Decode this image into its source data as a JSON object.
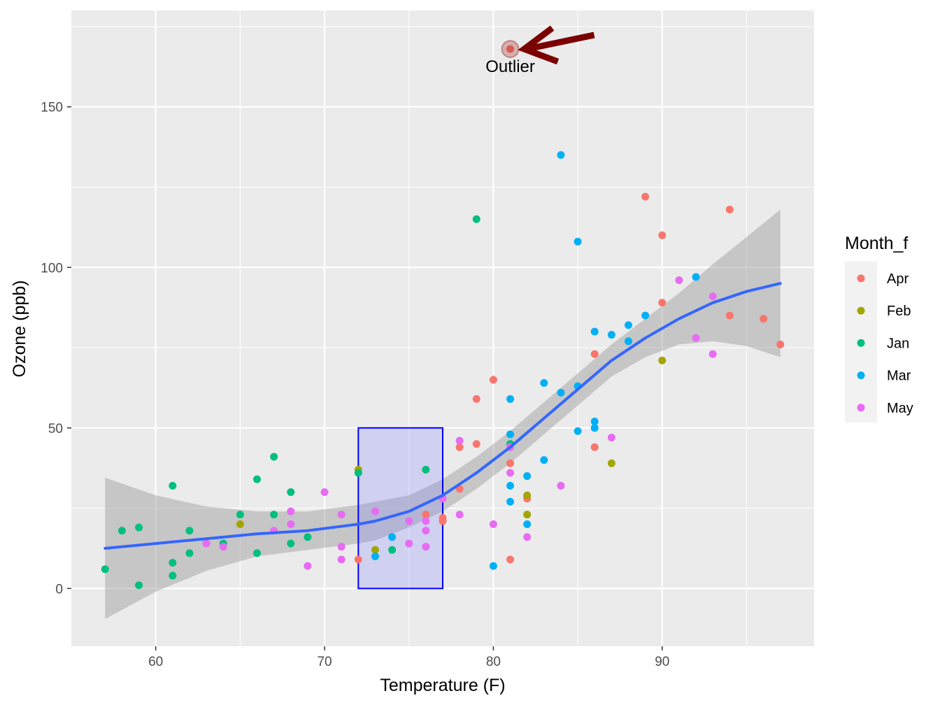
{
  "chart_data": {
    "type": "scatter",
    "xlabel": "Temperature (F)",
    "ylabel": "Ozone (ppb)",
    "xlim": [
      55,
      99
    ],
    "ylim": [
      -18,
      180
    ],
    "x_ticks": [
      60,
      70,
      80,
      90
    ],
    "y_ticks": [
      0,
      50,
      100,
      150
    ],
    "x_tick_labels": [
      "60",
      "70",
      "80",
      "90"
    ],
    "y_tick_labels": [
      "0",
      "50",
      "100",
      "150"
    ],
    "grid": true,
    "legend": {
      "title": "Month_f",
      "position": "right",
      "entries": [
        {
          "name": "Apr",
          "color": "#F8766D"
        },
        {
          "name": "Feb",
          "color": "#A3A500"
        },
        {
          "name": "Jan",
          "color": "#00BF7D"
        },
        {
          "name": "Mar",
          "color": "#00B0F6"
        },
        {
          "name": "May",
          "color": "#E76BF3"
        }
      ]
    },
    "series": [
      {
        "name": "Apr",
        "color": "#F8766D",
        "points": [
          [
            81,
            168
          ],
          [
            89,
            122
          ],
          [
            94,
            118
          ],
          [
            90,
            110
          ],
          [
            90,
            89
          ],
          [
            94,
            85
          ],
          [
            96,
            84
          ],
          [
            97,
            76
          ],
          [
            86,
            73
          ],
          [
            80,
            65
          ],
          [
            79,
            59
          ],
          [
            79,
            45
          ],
          [
            78,
            44
          ],
          [
            86,
            44
          ],
          [
            81,
            39
          ],
          [
            78,
            31
          ],
          [
            82,
            28
          ],
          [
            76,
            23
          ],
          [
            77,
            22
          ],
          [
            77,
            21
          ],
          [
            72,
            9
          ],
          [
            81,
            9
          ]
        ]
      },
      {
        "name": "Feb",
        "color": "#A3A500",
        "points": [
          [
            90,
            71
          ],
          [
            87,
            39
          ],
          [
            72,
            37
          ],
          [
            82,
            29
          ],
          [
            65,
            20
          ],
          [
            82,
            23
          ],
          [
            73,
            12
          ]
        ]
      },
      {
        "name": "Jan",
        "color": "#00BF7D",
        "points": [
          [
            79,
            115
          ],
          [
            67,
            41
          ],
          [
            76,
            37
          ],
          [
            72,
            36
          ],
          [
            66,
            34
          ],
          [
            61,
            32
          ],
          [
            68,
            30
          ],
          [
            81,
            45
          ],
          [
            65,
            23
          ],
          [
            67,
            23
          ],
          [
            58,
            18
          ],
          [
            59,
            19
          ],
          [
            62,
            18
          ],
          [
            69,
            16
          ],
          [
            64,
            14
          ],
          [
            68,
            14
          ],
          [
            74,
            12
          ],
          [
            62,
            11
          ],
          [
            66,
            11
          ],
          [
            61,
            8
          ],
          [
            57,
            6
          ],
          [
            61,
            4
          ],
          [
            59,
            1
          ]
        ]
      },
      {
        "name": "Mar",
        "color": "#00B0F6",
        "points": [
          [
            84,
            135
          ],
          [
            85,
            108
          ],
          [
            92,
            97
          ],
          [
            89,
            85
          ],
          [
            88,
            82
          ],
          [
            87,
            79
          ],
          [
            86,
            80
          ],
          [
            88,
            77
          ],
          [
            83,
            64
          ],
          [
            85,
            63
          ],
          [
            84,
            61
          ],
          [
            81,
            59
          ],
          [
            86,
            52
          ],
          [
            86,
            50
          ],
          [
            85,
            49
          ],
          [
            81,
            48
          ],
          [
            83,
            40
          ],
          [
            82,
            35
          ],
          [
            81,
            32
          ],
          [
            81,
            27
          ],
          [
            82,
            20
          ],
          [
            74,
            16
          ],
          [
            73,
            10
          ],
          [
            80,
            7
          ]
        ]
      },
      {
        "name": "May",
        "color": "#E76BF3",
        "points": [
          [
            91,
            96
          ],
          [
            93,
            91
          ],
          [
            92,
            78
          ],
          [
            93,
            73
          ],
          [
            87,
            47
          ],
          [
            78,
            46
          ],
          [
            81,
            44
          ],
          [
            84,
            32
          ],
          [
            81,
            36
          ],
          [
            70,
            30
          ],
          [
            77,
            28
          ],
          [
            68,
            24
          ],
          [
            73,
            24
          ],
          [
            71,
            23
          ],
          [
            78,
            23
          ],
          [
            67,
            18
          ],
          [
            68,
            20
          ],
          [
            75,
            21
          ],
          [
            76,
            21
          ],
          [
            76,
            18
          ],
          [
            80,
            20
          ],
          [
            82,
            16
          ],
          [
            63,
            14
          ],
          [
            64,
            13
          ],
          [
            71,
            13
          ],
          [
            75,
            14
          ],
          [
            76,
            13
          ],
          [
            71,
            9
          ],
          [
            69,
            7
          ]
        ]
      }
    ],
    "smooth": {
      "x": [
        57,
        60,
        63,
        66,
        69,
        72,
        73,
        75,
        77,
        79,
        81,
        83,
        85,
        87,
        89,
        91,
        93,
        95,
        97
      ],
      "y": [
        12.5,
        14,
        15.5,
        17,
        18,
        20,
        21,
        24,
        29,
        36,
        44,
        53,
        62,
        71,
        78,
        84,
        89,
        92.5,
        95
      ],
      "se_half_width": [
        22,
        15,
        10,
        7,
        6,
        6,
        6,
        5,
        5,
        5,
        5,
        5,
        5,
        5,
        6,
        8,
        12,
        17,
        23
      ]
    },
    "annotations": {
      "rect": {
        "xmin": 72,
        "xmax": 77,
        "ymin": 0,
        "ymax": 50
      },
      "outlier": {
        "x": 81,
        "y": 168,
        "label": "Outlier"
      }
    }
  }
}
